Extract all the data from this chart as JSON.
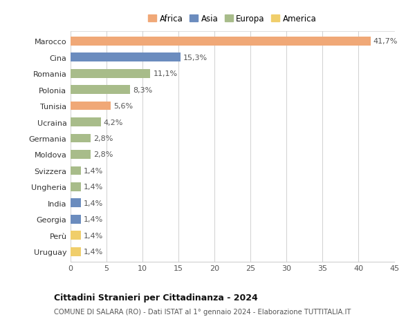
{
  "categories": [
    "Marocco",
    "Cina",
    "Romania",
    "Polonia",
    "Tunisia",
    "Ucraina",
    "Germania",
    "Moldova",
    "Svizzera",
    "Ungheria",
    "India",
    "Georgia",
    "Perù",
    "Uruguay"
  ],
  "values": [
    41.7,
    15.3,
    11.1,
    8.3,
    5.6,
    4.2,
    2.8,
    2.8,
    1.4,
    1.4,
    1.4,
    1.4,
    1.4,
    1.4
  ],
  "labels": [
    "41,7%",
    "15,3%",
    "11,1%",
    "8,3%",
    "5,6%",
    "4,2%",
    "2,8%",
    "2,8%",
    "1,4%",
    "1,4%",
    "1,4%",
    "1,4%",
    "1,4%",
    "1,4%"
  ],
  "continents": [
    "Africa",
    "Asia",
    "Europa",
    "Europa",
    "Africa",
    "Europa",
    "Europa",
    "Europa",
    "Europa",
    "Europa",
    "Asia",
    "Asia",
    "America",
    "America"
  ],
  "colors": {
    "Africa": "#F0A877",
    "Asia": "#6B8CBE",
    "Europa": "#A8BC8A",
    "America": "#F0CE6B"
  },
  "legend_order": [
    "Africa",
    "Asia",
    "Europa",
    "America"
  ],
  "xlim": [
    0,
    45
  ],
  "xticks": [
    0,
    5,
    10,
    15,
    20,
    25,
    30,
    35,
    40,
    45
  ],
  "title": "Cittadini Stranieri per Cittadinanza - 2024",
  "subtitle": "COMUNE DI SALARA (RO) - Dati ISTAT al 1° gennaio 2024 - Elaborazione TUTTITALIA.IT",
  "background_color": "#ffffff",
  "grid_color": "#d0d0d0",
  "bar_height": 0.55,
  "label_fontsize": 8,
  "ytick_fontsize": 8,
  "xtick_fontsize": 8
}
